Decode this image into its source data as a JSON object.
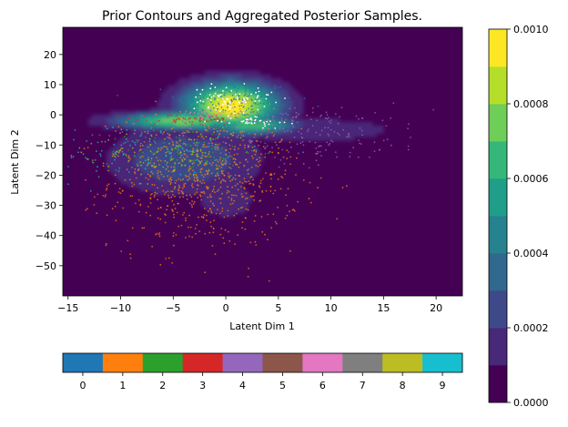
{
  "chart_data": {
    "type": "scatter",
    "title": "Prior Contours and Aggregated Posterior Samples.",
    "xlabel": "Latent Dim 1",
    "ylabel": "Latent Dim 2",
    "xlim": [
      -15.5,
      22.5
    ],
    "ylim": [
      -60,
      29
    ],
    "x_ticks": [
      -15,
      -10,
      -5,
      0,
      5,
      10,
      15,
      20
    ],
    "y_ticks": [
      20,
      10,
      0,
      -10,
      -20,
      -30,
      -40,
      -50
    ],
    "grid": false,
    "background_color": "#440154",
    "density_colorbar": {
      "ticks": [
        "0.0010",
        "0.0008",
        "0.0006",
        "0.0004",
        "0.0002",
        "0.0000"
      ],
      "tick_values": [
        0.001,
        0.0008,
        0.0006,
        0.0004,
        0.0002,
        0.0
      ],
      "range": [
        0.0,
        0.001
      ],
      "levels": 10,
      "colors": [
        "#440154",
        "#482878",
        "#3e4989",
        "#31688e",
        "#26828e",
        "#1f9e89",
        "#35b779",
        "#6ece58",
        "#b5de2b",
        "#fde725"
      ]
    },
    "class_colorbar": {
      "labels": [
        "0",
        "1",
        "2",
        "3",
        "4",
        "5",
        "6",
        "7",
        "8",
        "9"
      ],
      "colors": [
        "#1f77b4",
        "#ff7f0e",
        "#2ca02c",
        "#d62728",
        "#9467bd",
        "#8c564b",
        "#e377c2",
        "#7f7f7f",
        "#bcbd22",
        "#17becf"
      ]
    },
    "prior_density_lobes": [
      {
        "cx": 0.5,
        "cy": 3.0,
        "sx": 3.2,
        "sy": 5.5,
        "peak": 0.001
      },
      {
        "cx": -4.0,
        "cy": -2.0,
        "sx": 4.5,
        "sy": 2.0,
        "peak": 0.0008
      },
      {
        "cx": 2.5,
        "cy": -3.5,
        "sx": 3.0,
        "sy": 2.0,
        "peak": 0.0007
      },
      {
        "cx": -4.0,
        "cy": -15.0,
        "sx": 5.0,
        "sy": 8.0,
        "peak": 0.0003
      },
      {
        "cx": 0.0,
        "cy": -28.0,
        "sx": 4.0,
        "sy": 9.0,
        "peak": 0.00012
      },
      {
        "cx": 8.0,
        "cy": -5.0,
        "sx": 6.0,
        "sy": 3.0,
        "peak": 0.0002
      }
    ],
    "sample_clusters": [
      {
        "class": 0,
        "cx": 1.0,
        "cy": 5.0,
        "sx": 2.8,
        "sy": 3.0,
        "count": 150
      },
      {
        "class": 1,
        "cx": -2.0,
        "cy": -22.0,
        "sx": 4.5,
        "sy": 11.0,
        "count": 700
      },
      {
        "class": 2,
        "cx": -4.0,
        "cy": -12.0,
        "sx": 3.5,
        "sy": 4.0,
        "count": 120
      },
      {
        "class": 3,
        "cx": -3.0,
        "cy": -1.5,
        "sx": 2.0,
        "sy": 1.0,
        "count": 40
      },
      {
        "class": 4,
        "cx": 6.0,
        "cy": -6.0,
        "sx": 7.0,
        "sy": 5.0,
        "count": 220
      },
      {
        "class": 5,
        "cx": -2.0,
        "cy": -1.5,
        "sx": 1.5,
        "sy": 0.8,
        "count": 40
      },
      {
        "class": 6,
        "cx": -1.0,
        "cy": 0.5,
        "sx": 1.5,
        "sy": 0.7,
        "count": 40
      },
      {
        "class": 7,
        "cx": 3.0,
        "cy": -2.0,
        "sx": 1.5,
        "sy": 1.5,
        "count": 50
      },
      {
        "class": 8,
        "cx": -5.0,
        "cy": -14.0,
        "sx": 4.0,
        "sy": 5.0,
        "count": 150
      },
      {
        "class": 9,
        "cx": -7.0,
        "cy": -12.0,
        "sx": 5.0,
        "sy": 5.0,
        "count": 120
      }
    ],
    "white_samples": [
      {
        "cx": 0.5,
        "cy": 5.5,
        "sx": 2.0,
        "sy": 2.0,
        "count": 80
      },
      {
        "cx": 2.5,
        "cy": -2.0,
        "sx": 1.5,
        "sy": 1.0,
        "count": 40
      }
    ]
  }
}
